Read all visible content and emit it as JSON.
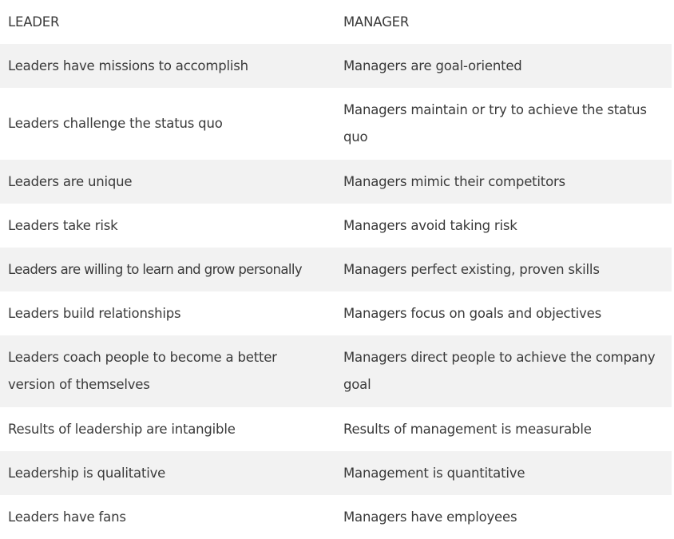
{
  "header": {
    "leader": "LEADER",
    "manager": "MANAGER"
  },
  "rows": [
    {
      "leader": "Leaders have missions to accomplish",
      "manager": "Managers are goal-oriented"
    },
    {
      "leader": "Leaders challenge the status quo",
      "manager": "Managers maintain or try to achieve the status quo"
    },
    {
      "leader": "Leaders are unique",
      "manager": "Managers mimic their competitors"
    },
    {
      "leader": "Leaders take risk",
      "manager": "Managers avoid taking risk"
    },
    {
      "leader": "Leaders are willing to learn and grow personally",
      "manager": "Managers perfect existing, proven skills"
    },
    {
      "leader": "Leaders build relationships",
      "manager": "Managers focus on goals and objectives"
    },
    {
      "leader": "Leaders coach people to become a better version of themselves",
      "manager": "Managers direct people to achieve the company goal"
    },
    {
      "leader": "Results of leadership are intangible",
      "manager": "Results of management is measurable"
    },
    {
      "leader": "Leadership is qualitative",
      "manager": "Management is quantitative"
    },
    {
      "leader": "Leaders have fans",
      "manager": "Managers have employees"
    }
  ],
  "colors": {
    "stripe": "#f2f2f2",
    "text": "#3a3a3a"
  }
}
